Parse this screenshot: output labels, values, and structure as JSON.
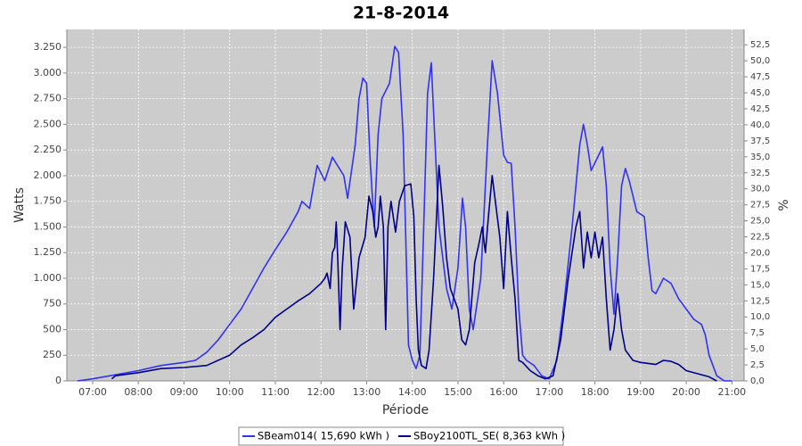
{
  "chart_data": {
    "type": "line",
    "title": "21-8-2014",
    "y_label": "Watts",
    "y2_label": "%",
    "x_label": "Période",
    "xlim": [
      "06:26",
      "21:16"
    ],
    "xticks": [
      "07:00",
      "08:00",
      "09:00",
      "10:00",
      "11:00",
      "12:00",
      "13:00",
      "14:00",
      "15:00",
      "16:00",
      "17:00",
      "18:00",
      "19:00",
      "20:00",
      "21:00"
    ],
    "ylim": [
      0,
      3425
    ],
    "yticks": [
      0,
      250,
      500,
      750,
      {
        "value": 1000,
        "label": "1.000"
      },
      {
        "value": 1250,
        "label": "1.250"
      },
      {
        "value": 1500,
        "label": "1.500"
      },
      {
        "value": 1750,
        "label": "1.750"
      },
      {
        "value": 2000,
        "label": "2.000"
      },
      {
        "value": 2250,
        "label": "2.250"
      },
      {
        "value": 2500,
        "label": "2.500"
      },
      {
        "value": 2750,
        "label": "2.750"
      },
      {
        "value": 3000,
        "label": "3.000"
      },
      {
        "value": 3250,
        "label": "3.250"
      }
    ],
    "y2lim": [
      0,
      54.9
    ],
    "y2ticks": [
      {
        "value": 0,
        "label": "0,0"
      },
      {
        "value": 2.5,
        "label": "2,5"
      },
      {
        "value": 5,
        "label": "5,0"
      },
      {
        "value": 7.5,
        "label": "7,5"
      },
      {
        "value": 10,
        "label": "10,0"
      },
      {
        "value": 12.5,
        "label": "12,5"
      },
      {
        "value": 15,
        "label": "15,0"
      },
      {
        "value": 17.5,
        "label": "17,5"
      },
      {
        "value": 20,
        "label": "20,0"
      },
      {
        "value": 22.5,
        "label": "22,5"
      },
      {
        "value": 25,
        "label": "25,0"
      },
      {
        "value": 27.5,
        "label": "27,5"
      },
      {
        "value": 30,
        "label": "30,0"
      },
      {
        "value": 32.5,
        "label": "32,5"
      },
      {
        "value": 35,
        "label": "35,0"
      },
      {
        "value": 37.5,
        "label": "37,5"
      },
      {
        "value": 40,
        "label": "40,0"
      },
      {
        "value": 42.5,
        "label": "42,5"
      },
      {
        "value": 45,
        "label": "45,0"
      },
      {
        "value": 47.5,
        "label": "47,5"
      },
      {
        "value": 50,
        "label": "50,0"
      },
      {
        "value": 52.5,
        "label": "52,5"
      }
    ],
    "grid": true,
    "legend": "bottom",
    "series": [
      {
        "name": "SBeam014( 15,690 kWh )",
        "color": "#3333ee",
        "x": [
          "06:40",
          "07:00",
          "07:30",
          "08:00",
          "08:30",
          "09:00",
          "09:15",
          "09:30",
          "09:45",
          "10:00",
          "10:15",
          "10:30",
          "10:45",
          "11:00",
          "11:15",
          "11:30",
          "11:35",
          "11:45",
          "11:55",
          "12:05",
          "12:15",
          "12:30",
          "12:35",
          "12:45",
          "12:50",
          "12:55",
          "13:00",
          "13:05",
          "13:10",
          "13:15",
          "13:20",
          "13:30",
          "13:37",
          "13:42",
          "13:48",
          "13:52",
          "13:55",
          "14:00",
          "14:05",
          "14:10",
          "14:15",
          "14:20",
          "14:25",
          "14:30",
          "14:35",
          "14:45",
          "14:52",
          "15:00",
          "15:06",
          "15:10",
          "15:15",
          "15:20",
          "15:30",
          "15:38",
          "15:45",
          "15:52",
          "16:00",
          "16:05",
          "16:10",
          "16:15",
          "16:20",
          "16:25",
          "16:30",
          "16:40",
          "16:50",
          "17:00",
          "17:10",
          "17:20",
          "17:30",
          "17:40",
          "17:45",
          "17:50",
          "17:55",
          "18:05",
          "18:10",
          "18:15",
          "18:20",
          "18:25",
          "18:30",
          "18:35",
          "18:40",
          "18:45",
          "18:55",
          "19:05",
          "19:10",
          "19:15",
          "19:20",
          "19:30",
          "19:40",
          "19:50",
          "20:00",
          "20:10",
          "20:20",
          "20:25",
          "20:30",
          "20:40",
          "20:50",
          "21:00"
        ],
        "values": [
          0,
          20,
          60,
          100,
          150,
          180,
          200,
          280,
          400,
          550,
          700,
          900,
          1100,
          1280,
          1450,
          1650,
          1750,
          1680,
          2100,
          1950,
          2180,
          2000,
          1780,
          2300,
          2750,
          2950,
          2900,
          2100,
          1500,
          2400,
          2750,
          2900,
          3260,
          3200,
          2400,
          1200,
          350,
          200,
          120,
          250,
          1500,
          2800,
          3100,
          2300,
          1500,
          900,
          700,
          1100,
          1780,
          1500,
          700,
          500,
          1000,
          2200,
          3120,
          2800,
          2200,
          2130,
          2120,
          1500,
          700,
          250,
          200,
          150,
          50,
          20,
          200,
          800,
          1500,
          2300,
          2500,
          2300,
          2050,
          2200,
          2280,
          1900,
          1100,
          650,
          1200,
          1900,
          2070,
          1950,
          1650,
          1600,
          1200,
          880,
          850,
          1000,
          950,
          800,
          700,
          600,
          550,
          450,
          250,
          50,
          0,
          0
        ]
      },
      {
        "name": "SBoy2100TL_SE( 8,363 kWh )",
        "color": "#000088",
        "x": [
          "07:25",
          "07:30",
          "08:00",
          "08:30",
          "09:00",
          "09:30",
          "10:00",
          "10:15",
          "10:30",
          "10:45",
          "11:00",
          "11:15",
          "11:30",
          "11:45",
          "12:00",
          "12:05",
          "12:08",
          "12:12",
          "12:15",
          "12:18",
          "12:20",
          "12:22",
          "12:25",
          "12:28",
          "12:32",
          "12:38",
          "12:43",
          "12:50",
          "12:58",
          "13:03",
          "13:08",
          "13:12",
          "13:15",
          "13:18",
          "13:22",
          "13:25",
          "13:28",
          "13:32",
          "13:35",
          "13:38",
          "13:43",
          "13:50",
          "13:58",
          "14:02",
          "14:05",
          "14:08",
          "14:12",
          "14:18",
          "14:22",
          "14:28",
          "14:35",
          "14:40",
          "14:45",
          "14:50",
          "15:00",
          "15:05",
          "15:10",
          "15:15",
          "15:22",
          "15:28",
          "15:32",
          "15:36",
          "15:40",
          "15:45",
          "15:50",
          "15:55",
          "16:00",
          "16:05",
          "16:10",
          "16:15",
          "16:20",
          "16:25",
          "16:35",
          "16:45",
          "16:55",
          "17:05",
          "17:15",
          "17:25",
          "17:35",
          "17:40",
          "17:45",
          "17:50",
          "17:55",
          "18:00",
          "18:05",
          "18:10",
          "18:15",
          "18:20",
          "18:25",
          "18:30",
          "18:35",
          "18:40",
          "18:50",
          "19:00",
          "19:10",
          "19:20",
          "19:30",
          "19:40",
          "19:50",
          "20:00",
          "20:20",
          "20:30",
          "20:40"
        ],
        "values": [
          20,
          50,
          80,
          120,
          130,
          150,
          250,
          350,
          420,
          500,
          620,
          700,
          780,
          850,
          950,
          1000,
          1050,
          900,
          1250,
          1300,
          1550,
          1200,
          500,
          1100,
          1550,
          1400,
          700,
          1200,
          1400,
          1800,
          1650,
          1400,
          1500,
          1800,
          1500,
          500,
          1500,
          1750,
          1600,
          1450,
          1750,
          1900,
          1920,
          1600,
          800,
          300,
          150,
          120,
          300,
          1000,
          2100,
          1700,
          1200,
          900,
          700,
          400,
          350,
          500,
          1150,
          1350,
          1500,
          1250,
          1600,
          2000,
          1700,
          1400,
          900,
          1650,
          1200,
          800,
          200,
          180,
          100,
          50,
          20,
          50,
          400,
          1000,
          1500,
          1650,
          1100,
          1450,
          1200,
          1450,
          1200,
          1400,
          800,
          300,
          500,
          850,
          500,
          300,
          200,
          180,
          170,
          160,
          200,
          190,
          160,
          100,
          60,
          40,
          0
        ]
      }
    ]
  }
}
